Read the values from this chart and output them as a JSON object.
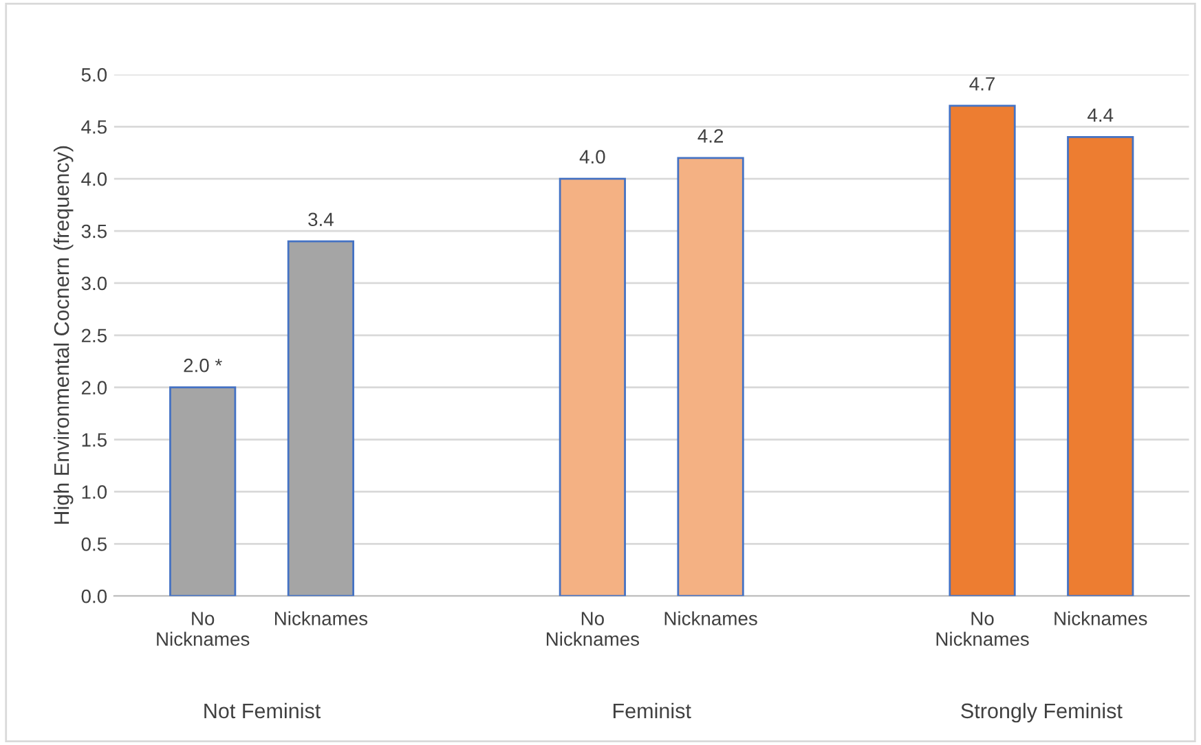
{
  "chart_data": {
    "type": "bar",
    "ylabel": "High Environmental Cocnern (frequency)",
    "categories": [
      "No\nNicknames",
      "Nicknames",
      "No\nNicknames",
      "Nicknames",
      "No\nNicknames",
      "Nicknames"
    ],
    "values": [
      2.0,
      3.4,
      4.0,
      4.2,
      4.7,
      4.4
    ],
    "colors": [
      "#a5a5a5",
      "#a5a5a5",
      "#f4b183",
      "#f4b183",
      "#ed7d31",
      "#ed7d31"
    ],
    "value_labels": [
      "2.0 *",
      "3.4",
      "4.0",
      "4.2",
      "4.7",
      "4.4"
    ],
    "annotations": [
      "Not Feminist",
      "Feminist",
      "Strongly Feminist"
    ],
    "ylim": [
      0,
      5
    ],
    "yticks": [
      {
        "value": 0,
        "label": "0.0"
      },
      {
        "value": 0.5,
        "label": "0.5"
      },
      {
        "value": 1,
        "label": "1.0"
      },
      {
        "value": 1.5,
        "label": "1.5"
      },
      {
        "value": 2,
        "label": "2.0"
      },
      {
        "value": 2.5,
        "label": "2.5"
      },
      {
        "value": 3,
        "label": "3.0"
      },
      {
        "value": 3.5,
        "label": "3.5"
      },
      {
        "value": 4,
        "label": "4.0"
      },
      {
        "value": 4.5,
        "label": "4.5"
      },
      {
        "value": 5,
        "label": "5.0"
      }
    ],
    "grid": "y",
    "legend": false
  }
}
